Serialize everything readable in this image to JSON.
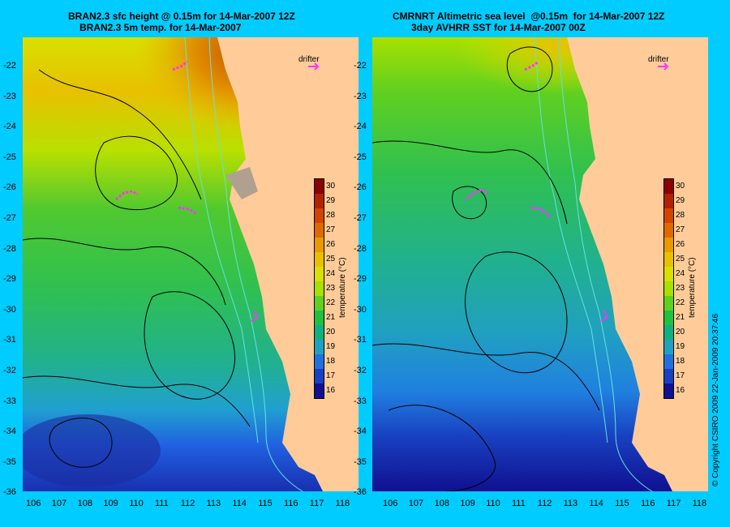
{
  "panels": [
    {
      "title_line1": "BRAN2.3 sfc height @ 0.15m for 14-Mar-2007 12Z",
      "title_line2": "BRAN2.3 5m temp. for 14-Mar-2007",
      "drifter_label": "drifter"
    },
    {
      "title_line1": "CMRNRT Altimetric sea level  @0.15m  for 14-Mar-2007 12Z",
      "title_line2": "3day AVHRR SST for 14-Mar-2007 00Z",
      "drifter_label": "drifter"
    }
  ],
  "lon_ticks": [
    "106",
    "107",
    "108",
    "109",
    "110",
    "111",
    "112",
    "113",
    "114",
    "115",
    "116",
    "117",
    "118"
  ],
  "lat_ticks": [
    "-22",
    "-23",
    "-24",
    "-25",
    "-26",
    "-27",
    "-28",
    "-29",
    "-30",
    "-31",
    "-32",
    "-33",
    "-34",
    "-35",
    "-36"
  ],
  "colorbar": {
    "title": "temperature (°C)",
    "ticks": [
      "30",
      "29",
      "28",
      "27",
      "26",
      "25",
      "24",
      "23",
      "22",
      "21",
      "20",
      "19",
      "18",
      "17",
      "16"
    ],
    "colors": [
      "#8b0000",
      "#b22200",
      "#d24400",
      "#e06a00",
      "#e89a00",
      "#e8c000",
      "#d8e000",
      "#a8e000",
      "#60d020",
      "#20c040",
      "#10b080",
      "#20a0c0",
      "#2070e0",
      "#1840c0",
      "#101090"
    ]
  },
  "copyright": "© Copyright CSIRO 2009   22-Jan-2009 20:37:46",
  "colors": {
    "background": "#00ccff",
    "land": "#ffcc99",
    "contour": "#000000",
    "isobath": "#66e0e0",
    "drifter": "#ff33ff"
  }
}
